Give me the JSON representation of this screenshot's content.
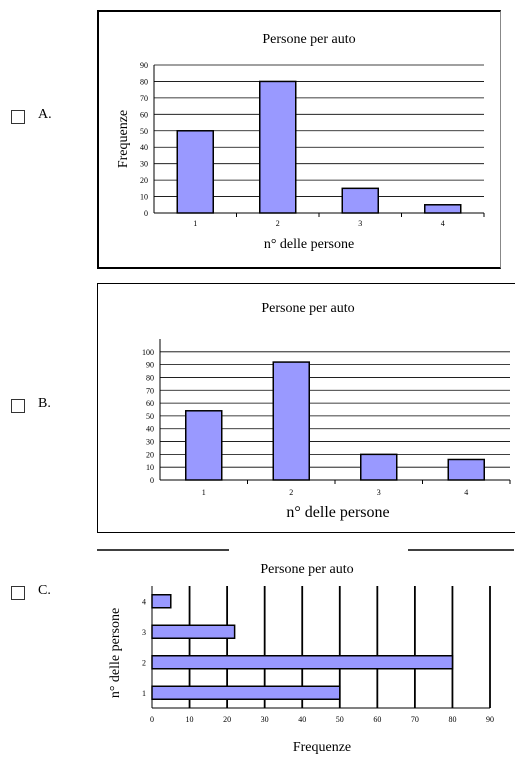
{
  "options": [
    {
      "letter": "A.",
      "chart": {
        "type": "bar",
        "title": "Persone per auto",
        "xlabel": "n° delle persone",
        "ylabel": "Frequenze",
        "categories": [
          "1",
          "2",
          "3",
          "4"
        ],
        "values": [
          50,
          80,
          15,
          5
        ],
        "ylim": [
          0,
          90
        ],
        "yticks": [
          "0",
          "10",
          "20",
          "30",
          "40",
          "50",
          "60",
          "70",
          "80",
          "90"
        ],
        "grid": true,
        "orientation": "vertical"
      }
    },
    {
      "letter": "B.",
      "chart": {
        "type": "bar",
        "title": "Persone per auto",
        "xlabel": "n° delle persone",
        "ylabel": "",
        "categories": [
          "1",
          "2",
          "3",
          "4"
        ],
        "values": [
          54,
          92,
          20,
          16
        ],
        "ylim": [
          0,
          110
        ],
        "yticks": [
          "0",
          "10",
          "20",
          "30",
          "40",
          "50",
          "60",
          "70",
          "80",
          "90",
          "100"
        ],
        "grid": true,
        "orientation": "vertical"
      }
    },
    {
      "letter": "C.",
      "chart": {
        "type": "bar",
        "title": "Persone per auto",
        "xlabel": "Frequenze",
        "ylabel": "n° delle persone",
        "categories": [
          "1",
          "2",
          "3",
          "4"
        ],
        "values": [
          50,
          80,
          22,
          5
        ],
        "xlim": [
          0,
          90
        ],
        "xticks": [
          "0",
          "10",
          "20",
          "30",
          "40",
          "50",
          "60",
          "70",
          "80",
          "90"
        ],
        "grid": true,
        "orientation": "horizontal"
      }
    }
  ],
  "chart_data": [
    {
      "type": "bar",
      "title": "Persone per auto",
      "xlabel": "n° delle persone",
      "ylabel": "Frequenze",
      "categories": [
        "1",
        "2",
        "3",
        "4"
      ],
      "values": [
        50,
        80,
        15,
        5
      ],
      "ylim": [
        0,
        90
      ]
    },
    {
      "type": "bar",
      "title": "Persone per auto",
      "xlabel": "n° delle persone",
      "ylabel": "",
      "categories": [
        "1",
        "2",
        "3",
        "4"
      ],
      "values": [
        54,
        92,
        20,
        16
      ],
      "ylim": [
        0,
        110
      ]
    },
    {
      "type": "bar",
      "title": "Persone per auto",
      "xlabel": "Frequenze",
      "ylabel": "n° delle persone",
      "categories": [
        "1",
        "2",
        "3",
        "4"
      ],
      "values": [
        50,
        80,
        22,
        5
      ],
      "xlim": [
        0,
        90
      ]
    }
  ],
  "colors": {
    "bar_fill": "#9999ff",
    "bar_stroke": "#000000",
    "grid": "#000000",
    "panel_border": "#000000"
  }
}
